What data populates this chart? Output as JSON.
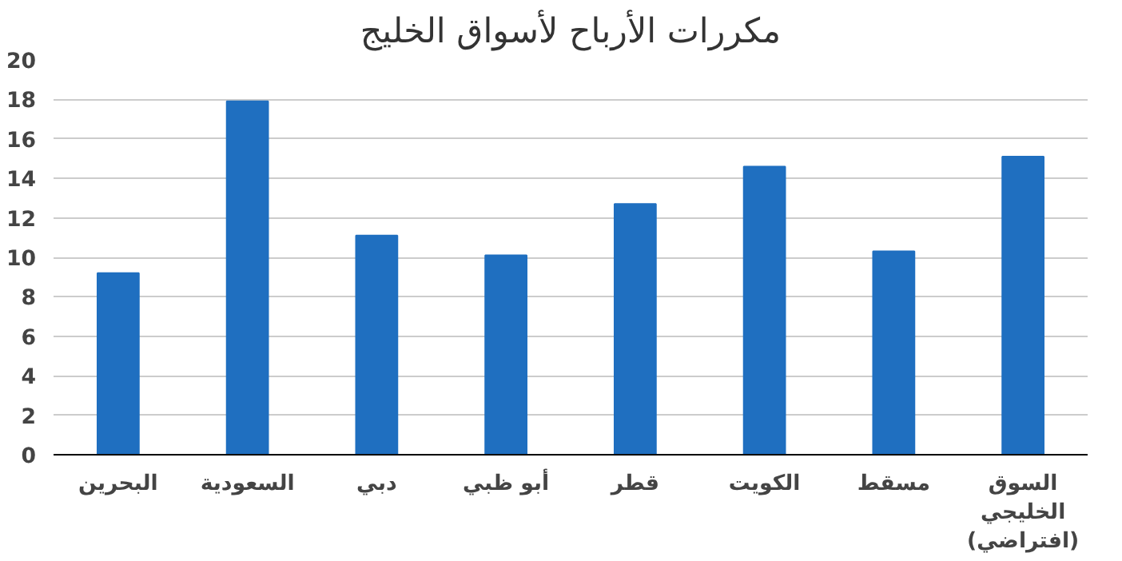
{
  "chart_data": {
    "type": "bar",
    "title": "مكررات الأرباح لأسواق الخليج",
    "categories": [
      "البحرين",
      "السعودية",
      "دبي",
      "أبو ظبي",
      "قطر",
      "الكويت",
      "مسقط",
      "السوق\nالخليجي\n(افتراضي)"
    ],
    "values": [
      9.2,
      17.9,
      11.1,
      10.1,
      12.7,
      14.6,
      10.3,
      15.1
    ],
    "color": "#1f6fc0",
    "ylim": [
      0,
      20
    ],
    "yticks": [
      0,
      2,
      4,
      6,
      8,
      10,
      12,
      14,
      16,
      18,
      20
    ],
    "grid": "y"
  }
}
